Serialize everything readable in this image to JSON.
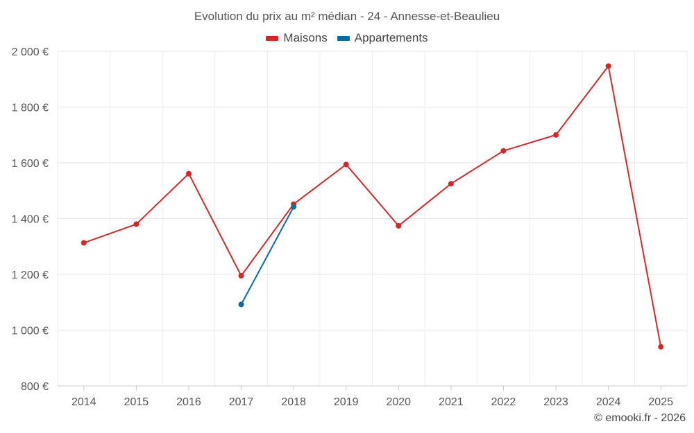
{
  "chart_data": {
    "type": "line",
    "title": "Evolution du prix au m² médian - 24 - Annesse-et-Beaulieu",
    "categories": [
      "2014",
      "2015",
      "2016",
      "2017",
      "2018",
      "2019",
      "2020",
      "2021",
      "2022",
      "2023",
      "2024",
      "2025"
    ],
    "series": [
      {
        "name": "Maisons",
        "color": "#d62728",
        "values": [
          1313,
          1380,
          1561,
          1195,
          1452,
          1594,
          1374,
          1525,
          1643,
          1700,
          1947,
          940
        ]
      },
      {
        "name": "Appartements",
        "color": "#0b6aa2",
        "values": [
          null,
          null,
          null,
          1092,
          1442,
          null,
          null,
          null,
          null,
          null,
          null,
          null
        ]
      }
    ],
    "ylim": [
      800,
      2000
    ],
    "yticks": [
      800,
      1000,
      1200,
      1400,
      1600,
      1800,
      2000
    ],
    "ytick_labels": [
      "800 €",
      "1 000 €",
      "1 200 €",
      "1 400 €",
      "1 600 €",
      "1 800 €",
      "2 000 €"
    ],
    "grid": true,
    "legend_position": "top-center"
  },
  "credit": "© emooki.fr - 2026"
}
